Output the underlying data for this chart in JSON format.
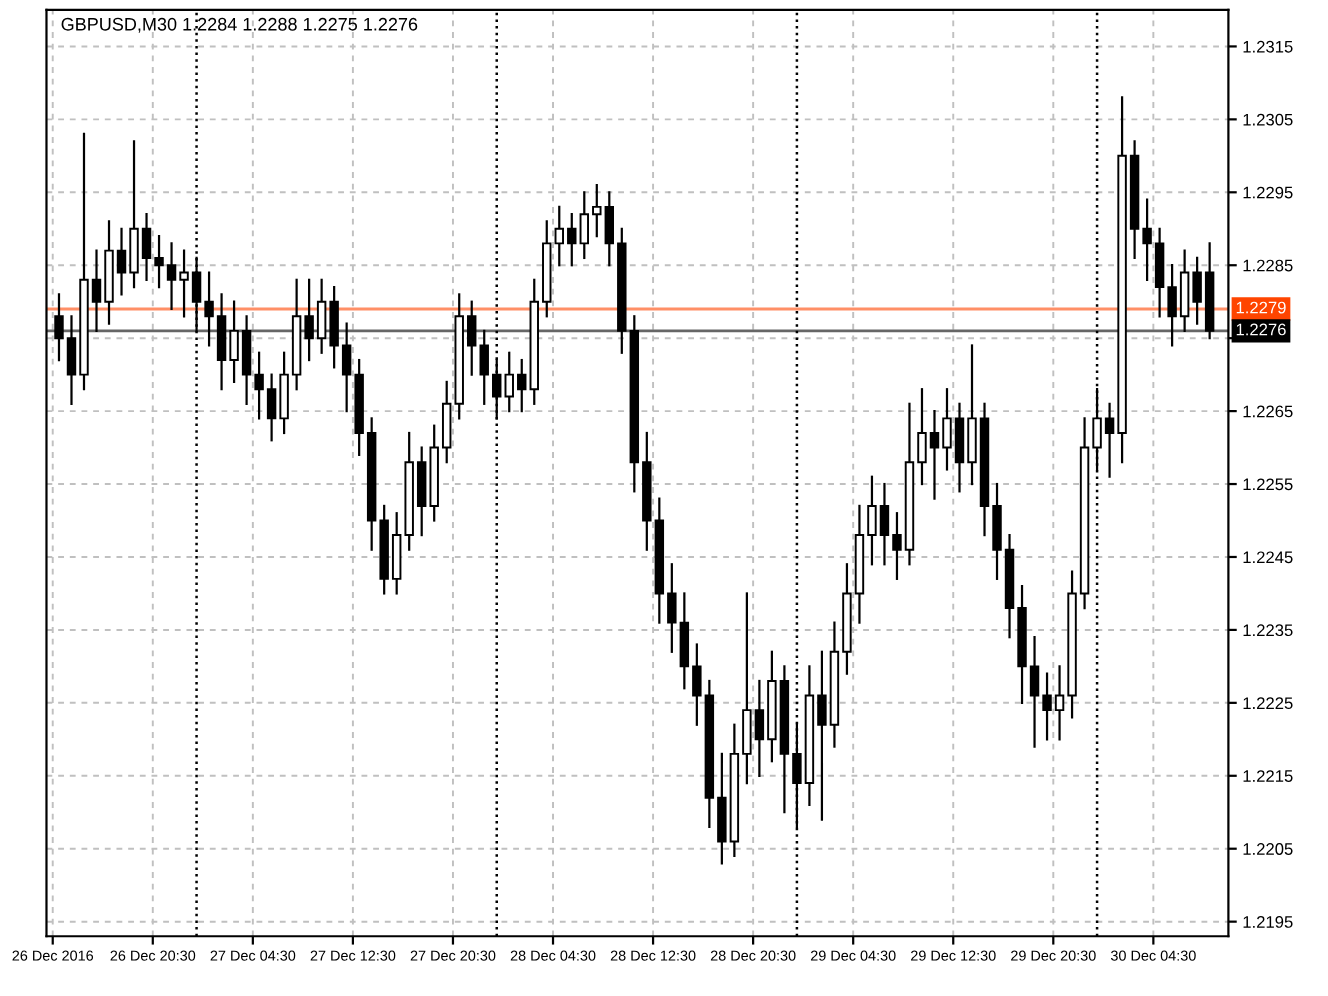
{
  "chart_data": {
    "type": "candlestick",
    "title": "GBPUSD,M30 1.2284 1.2288 1.2275 1.2276",
    "x": [
      "2016-12-26T13:00",
      "2016-12-26T14:00",
      "2016-12-26T15:00",
      "2016-12-26T16:00",
      "2016-12-26T17:00",
      "2016-12-26T18:00",
      "2016-12-26T19:00",
      "2016-12-26T20:00",
      "2016-12-26T21:00",
      "2016-12-26T22:00",
      "2016-12-26T23:00",
      "2016-12-27T00:00",
      "2016-12-27T01:00",
      "2016-12-27T02:00",
      "2016-12-27T03:00",
      "2016-12-27T04:00",
      "2016-12-27T05:00",
      "2016-12-27T06:00",
      "2016-12-27T07:00",
      "2016-12-27T08:00",
      "2016-12-27T09:00",
      "2016-12-27T10:00",
      "2016-12-27T11:00",
      "2016-12-27T12:00",
      "2016-12-27T13:00",
      "2016-12-27T14:00",
      "2016-12-27T15:00",
      "2016-12-27T16:00",
      "2016-12-27T17:00",
      "2016-12-27T18:00",
      "2016-12-27T19:00",
      "2016-12-27T20:00",
      "2016-12-27T21:00",
      "2016-12-27T22:00",
      "2016-12-27T23:00",
      "2016-12-28T00:00",
      "2016-12-28T01:00",
      "2016-12-28T02:00",
      "2016-12-28T03:00",
      "2016-12-28T04:00",
      "2016-12-28T05:00",
      "2016-12-28T06:00",
      "2016-12-28T07:00",
      "2016-12-28T08:00",
      "2016-12-28T09:00",
      "2016-12-28T10:00",
      "2016-12-28T11:00",
      "2016-12-28T12:00",
      "2016-12-28T13:00",
      "2016-12-28T14:00",
      "2016-12-28T15:00",
      "2016-12-28T16:00",
      "2016-12-28T17:00",
      "2016-12-28T18:00",
      "2016-12-28T19:00",
      "2016-12-28T20:00",
      "2016-12-28T21:00",
      "2016-12-28T22:00",
      "2016-12-28T23:00",
      "2016-12-29T00:00",
      "2016-12-29T01:00",
      "2016-12-29T02:00",
      "2016-12-29T03:00",
      "2016-12-29T04:00",
      "2016-12-29T05:00",
      "2016-12-29T06:00",
      "2016-12-29T07:00",
      "2016-12-29T08:00",
      "2016-12-29T09:00",
      "2016-12-29T10:00",
      "2016-12-29T11:00",
      "2016-12-29T12:00",
      "2016-12-29T13:00",
      "2016-12-29T14:00",
      "2016-12-29T15:00",
      "2016-12-29T16:00",
      "2016-12-29T17:00",
      "2016-12-29T18:00",
      "2016-12-29T19:00",
      "2016-12-29T20:00",
      "2016-12-29T21:00",
      "2016-12-29T22:00",
      "2016-12-29T23:00",
      "2016-12-30T00:00",
      "2016-12-30T01:00",
      "2016-12-30T02:00",
      "2016-12-30T03:00",
      "2016-12-30T04:00",
      "2016-12-30T05:00",
      "2016-12-30T06:00",
      "2016-12-30T07:00",
      "2016-12-30T08:00",
      "2016-12-30T09:00"
    ],
    "ohlc": [
      [
        1.2278,
        1.2281,
        1.2272,
        1.2275
      ],
      [
        1.2275,
        1.2278,
        1.2266,
        1.227
      ],
      [
        1.227,
        1.2303,
        1.2268,
        1.2283
      ],
      [
        1.2283,
        1.2287,
        1.2276,
        1.228
      ],
      [
        1.228,
        1.2291,
        1.2277,
        1.2287
      ],
      [
        1.2287,
        1.229,
        1.2281,
        1.2284
      ],
      [
        1.2284,
        1.2302,
        1.2282,
        1.229
      ],
      [
        1.229,
        1.2292,
        1.2283,
        1.2286
      ],
      [
        1.2286,
        1.2289,
        1.2282,
        1.2285
      ],
      [
        1.2285,
        1.2288,
        1.2279,
        1.2283
      ],
      [
        1.2283,
        1.2287,
        1.2278,
        1.2284
      ],
      [
        1.2284,
        1.2286,
        1.2276,
        1.228
      ],
      [
        1.228,
        1.2284,
        1.2274,
        1.2278
      ],
      [
        1.2278,
        1.2281,
        1.2268,
        1.2272
      ],
      [
        1.2272,
        1.228,
        1.2269,
        1.2276
      ],
      [
        1.2276,
        1.2278,
        1.2266,
        1.227
      ],
      [
        1.227,
        1.2273,
        1.2264,
        1.2268
      ],
      [
        1.2268,
        1.227,
        1.2261,
        1.2264
      ],
      [
        1.2264,
        1.2273,
        1.2262,
        1.227
      ],
      [
        1.227,
        1.2283,
        1.2268,
        1.2278
      ],
      [
        1.2278,
        1.2283,
        1.2272,
        1.2275
      ],
      [
        1.2275,
        1.2283,
        1.2273,
        1.228
      ],
      [
        1.228,
        1.2282,
        1.2271,
        1.2274
      ],
      [
        1.2274,
        1.2277,
        1.2265,
        1.227
      ],
      [
        1.227,
        1.2272,
        1.2259,
        1.2262
      ],
      [
        1.2262,
        1.2264,
        1.2246,
        1.225
      ],
      [
        1.225,
        1.2252,
        1.224,
        1.2242
      ],
      [
        1.2242,
        1.2251,
        1.224,
        1.2248
      ],
      [
        1.2248,
        1.2262,
        1.2246,
        1.2258
      ],
      [
        1.2258,
        1.226,
        1.2248,
        1.2252
      ],
      [
        1.2252,
        1.2263,
        1.225,
        1.226
      ],
      [
        1.226,
        1.2269,
        1.2258,
        1.2266
      ],
      [
        1.2266,
        1.2281,
        1.2264,
        1.2278
      ],
      [
        1.2278,
        1.228,
        1.227,
        1.2274
      ],
      [
        1.2274,
        1.2276,
        1.2266,
        1.227
      ],
      [
        1.227,
        1.2272,
        1.2264,
        1.2267
      ],
      [
        1.2267,
        1.2273,
        1.2265,
        1.227
      ],
      [
        1.227,
        1.2272,
        1.2265,
        1.2268
      ],
      [
        1.2268,
        1.2283,
        1.2266,
        1.228
      ],
      [
        1.228,
        1.2291,
        1.2278,
        1.2288
      ],
      [
        1.2288,
        1.2293,
        1.2285,
        1.229
      ],
      [
        1.229,
        1.2292,
        1.2285,
        1.2288
      ],
      [
        1.2288,
        1.2295,
        1.2286,
        1.2292
      ],
      [
        1.2292,
        1.2296,
        1.2289,
        1.2293
      ],
      [
        1.2293,
        1.2295,
        1.2285,
        1.2288
      ],
      [
        1.2288,
        1.229,
        1.2273,
        1.2276
      ],
      [
        1.2276,
        1.2278,
        1.2254,
        1.2258
      ],
      [
        1.2258,
        1.2262,
        1.2246,
        1.225
      ],
      [
        1.225,
        1.2253,
        1.2236,
        1.224
      ],
      [
        1.224,
        1.2244,
        1.2232,
        1.2236
      ],
      [
        1.2236,
        1.224,
        1.2227,
        1.223
      ],
      [
        1.223,
        1.2233,
        1.2222,
        1.2226
      ],
      [
        1.2226,
        1.2228,
        1.2208,
        1.2212
      ],
      [
        1.2212,
        1.2218,
        1.2203,
        1.2206
      ],
      [
        1.2206,
        1.2222,
        1.2204,
        1.2218
      ],
      [
        1.2218,
        1.224,
        1.2214,
        1.2224
      ],
      [
        1.2224,
        1.2228,
        1.2215,
        1.222
      ],
      [
        1.222,
        1.2232,
        1.2217,
        1.2228
      ],
      [
        1.2228,
        1.223,
        1.221,
        1.2218
      ],
      [
        1.2218,
        1.2222,
        1.2208,
        1.2214
      ],
      [
        1.2214,
        1.223,
        1.2211,
        1.2226
      ],
      [
        1.2226,
        1.2232,
        1.2209,
        1.2222
      ],
      [
        1.2222,
        1.2236,
        1.2219,
        1.2232
      ],
      [
        1.2232,
        1.2244,
        1.2229,
        1.224
      ],
      [
        1.224,
        1.2252,
        1.2236,
        1.2248
      ],
      [
        1.2248,
        1.2256,
        1.2244,
        1.2252
      ],
      [
        1.2252,
        1.2255,
        1.2244,
        1.2248
      ],
      [
        1.2248,
        1.2251,
        1.2242,
        1.2246
      ],
      [
        1.2246,
        1.2266,
        1.2244,
        1.2258
      ],
      [
        1.2258,
        1.2268,
        1.2255,
        1.2262
      ],
      [
        1.2262,
        1.2265,
        1.2253,
        1.226
      ],
      [
        1.226,
        1.2268,
        1.2257,
        1.2264
      ],
      [
        1.2264,
        1.2266,
        1.2254,
        1.2258
      ],
      [
        1.2258,
        1.2274,
        1.2255,
        1.2264
      ],
      [
        1.2264,
        1.2266,
        1.2248,
        1.2252
      ],
      [
        1.2252,
        1.2255,
        1.2242,
        1.2246
      ],
      [
        1.2246,
        1.2248,
        1.2234,
        1.2238
      ],
      [
        1.2238,
        1.2241,
        1.2225,
        1.223
      ],
      [
        1.223,
        1.2234,
        1.2219,
        1.2226
      ],
      [
        1.2226,
        1.2229,
        1.222,
        1.2224
      ],
      [
        1.2224,
        1.223,
        1.222,
        1.2226
      ],
      [
        1.2226,
        1.2243,
        1.2223,
        1.224
      ],
      [
        1.224,
        1.2264,
        1.2238,
        1.226
      ],
      [
        1.226,
        1.2268,
        1.2257,
        1.2264
      ],
      [
        1.2264,
        1.2266,
        1.2256,
        1.2262
      ],
      [
        1.2262,
        1.2308,
        1.2258,
        1.23
      ],
      [
        1.23,
        1.2302,
        1.2286,
        1.229
      ],
      [
        1.229,
        1.2294,
        1.2283,
        1.2288
      ],
      [
        1.2288,
        1.229,
        1.2278,
        1.2282
      ],
      [
        1.2282,
        1.2285,
        1.2274,
        1.2278
      ],
      [
        1.2278,
        1.2287,
        1.2276,
        1.2284
      ],
      [
        1.2284,
        1.2286,
        1.2277,
        1.228
      ],
      [
        1.2284,
        1.2288,
        1.2275,
        1.2276
      ]
    ],
    "xlim": [
      "2016-12-26T12:00",
      "2016-12-30T10:30"
    ],
    "xticks": [
      {
        "value": "2016-12-26T12:30",
        "label": "26 Dec 2016"
      },
      {
        "value": "2016-12-26T20:30",
        "label": "26 Dec 20:30"
      },
      {
        "value": "2016-12-27T04:30",
        "label": "27 Dec 04:30"
      },
      {
        "value": "2016-12-27T12:30",
        "label": "27 Dec 12:30"
      },
      {
        "value": "2016-12-27T20:30",
        "label": "27 Dec 20:30"
      },
      {
        "value": "2016-12-28T04:30",
        "label": "28 Dec 04:30"
      },
      {
        "value": "2016-12-28T12:30",
        "label": "28 Dec 12:30"
      },
      {
        "value": "2016-12-28T20:30",
        "label": "28 Dec 20:30"
      },
      {
        "value": "2016-12-29T04:30",
        "label": "29 Dec 04:30"
      },
      {
        "value": "2016-12-29T12:30",
        "label": "29 Dec 12:30"
      },
      {
        "value": "2016-12-29T20:30",
        "label": "29 Dec 20:30"
      },
      {
        "value": "2016-12-30T04:30",
        "label": "30 Dec 04:30"
      }
    ],
    "ylim": [
      1.2193,
      1.232
    ],
    "yticks": [
      1.2195,
      1.2205,
      1.2215,
      1.2225,
      1.2235,
      1.2245,
      1.2255,
      1.2265,
      {
        "value": 1.2275,
        "label": null
      },
      1.2285,
      1.2295,
      1.2305,
      1.2315
    ],
    "grid": true,
    "ref_lines": [
      {
        "axis": "y",
        "value": 1.2279,
        "label": "1.2279",
        "color": "#ff4500"
      },
      {
        "axis": "y",
        "value": 1.2276,
        "label": "1.2276",
        "color": "#000000"
      },
      {
        "axis": "x",
        "value": "2016-12-27T00:00",
        "color": "#000000",
        "line_style": "dotted"
      },
      {
        "axis": "x",
        "value": "2016-12-28T00:00",
        "color": "#000000",
        "line_style": "dotted"
      },
      {
        "axis": "x",
        "value": "2016-12-29T00:00",
        "color": "#000000",
        "line_style": "dotted"
      },
      {
        "axis": "x",
        "value": "2016-12-30T00:00",
        "color": "#000000",
        "line_style": "dotted"
      }
    ]
  }
}
